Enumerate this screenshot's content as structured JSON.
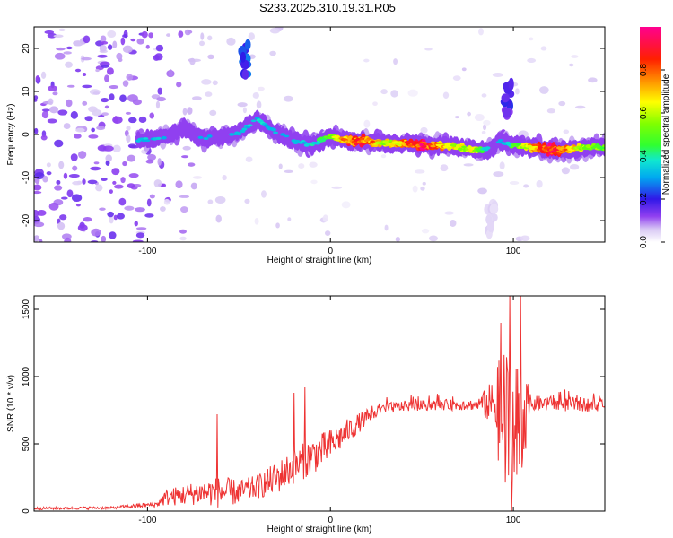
{
  "title": "S233.2025.310.19.31.R05",
  "chart_data": [
    {
      "type": "heatmap",
      "xlabel": "Height of straight line (km)",
      "ylabel": "Frequency (Hz)",
      "xlim": [
        -162,
        150
      ],
      "ylim": [
        -25,
        25
      ],
      "x_ticks": [
        -100,
        0,
        100
      ],
      "y_ticks": [
        -20,
        -10,
        0,
        10,
        20
      ],
      "colorbar": {
        "label": "Normalized spectral amplitude",
        "range": [
          0.0,
          1.0
        ],
        "ticks": [
          0.0,
          0.2,
          0.4,
          0.6,
          0.8
        ],
        "tick_labels": [
          "0.0",
          "0.2",
          "0.4",
          "0.6",
          "0.8"
        ]
      },
      "ridge": {
        "x": [
          -105,
          -90,
          -80,
          -70,
          -60,
          -50,
          -40,
          -30,
          -20,
          -10,
          0,
          10,
          20,
          30,
          40,
          50,
          60,
          70,
          80,
          88,
          92,
          96,
          100,
          110,
          120,
          130,
          140,
          150
        ],
        "frequency": [
          -1.5,
          -0.5,
          1.5,
          -1,
          -0.5,
          0.5,
          3.5,
          0.5,
          -1.5,
          -2.5,
          -0.5,
          -1.5,
          -1.5,
          -2,
          -2,
          -2.5,
          -2.5,
          -3,
          -3.5,
          -3.5,
          -1.5,
          -2,
          -2.5,
          -3,
          -3.5,
          -3.5,
          -3,
          -3
        ],
        "amplitude": [
          0.35,
          0.3,
          0.25,
          0.3,
          0.25,
          0.3,
          0.35,
          0.3,
          0.3,
          0.35,
          0.5,
          0.8,
          0.8,
          0.6,
          0.75,
          0.9,
          0.7,
          0.6,
          0.6,
          0.25,
          0.3,
          0.35,
          0.45,
          0.7,
          0.9,
          0.7,
          0.55,
          0.5
        ]
      },
      "features": [
        {
          "x": -47,
          "frequency": 17,
          "amplitude": 0.25
        },
        {
          "x": 97,
          "frequency": 8,
          "amplitude": 0.2
        },
        {
          "x": 88,
          "frequency": -20,
          "amplitude": 0.05
        }
      ]
    },
    {
      "type": "line",
      "xlabel": "Height of straight line (km)",
      "ylabel": "SNR (10 * v/v)",
      "xlim": [
        -162,
        150
      ],
      "ylim": [
        0,
        1600
      ],
      "x_ticks": [
        -100,
        0,
        100
      ],
      "y_ticks": [
        0,
        500,
        1000,
        1500
      ],
      "color": "#ee3333",
      "envelope": {
        "x": [
          -162,
          -120,
          -95,
          -90,
          -80,
          -70,
          -60,
          -50,
          -40,
          -30,
          -20,
          -10,
          0,
          10,
          20,
          30,
          40,
          60,
          80,
          90,
          94,
          100,
          105,
          110,
          150
        ],
        "base": [
          20,
          25,
          50,
          100,
          120,
          140,
          140,
          140,
          180,
          240,
          330,
          410,
          490,
          600,
          700,
          760,
          780,
          790,
          790,
          800,
          650,
          500,
          700,
          800,
          790
        ],
        "noise": [
          10,
          10,
          20,
          60,
          80,
          90,
          120,
          90,
          90,
          120,
          130,
          140,
          120,
          90,
          60,
          40,
          40,
          40,
          40,
          200,
          600,
          700,
          400,
          60,
          50
        ]
      },
      "peaks": [
        {
          "x": -62,
          "y": 720
        },
        {
          "x": -20,
          "y": 880
        },
        {
          "x": -14,
          "y": 920
        },
        {
          "x": 93,
          "y": 1400
        },
        {
          "x": 98,
          "y": 1600
        },
        {
          "x": 104,
          "y": 1600
        }
      ]
    }
  ]
}
